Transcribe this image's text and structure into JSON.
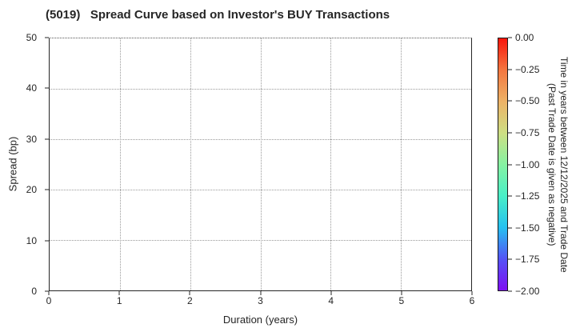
{
  "figure": {
    "background": "#ffffff",
    "text_color": "#262626",
    "grid_color": "#9a9a9a"
  },
  "chart_data": {
    "type": "scatter",
    "title": "(5019)   Spread Curve based on Investor's BUY Transactions",
    "xlabel": "Duration (years)",
    "ylabel": "Spread (bp)",
    "xlim": [
      0,
      6
    ],
    "ylim": [
      0,
      50
    ],
    "xticks": [
      "0",
      "1",
      "2",
      "3",
      "4",
      "5",
      "6"
    ],
    "yticks": [
      "0",
      "10",
      "20",
      "30",
      "40",
      "50"
    ],
    "grid": "dotted, horizontal and vertical",
    "series": [],
    "points": [],
    "colorbar": {
      "label_line1": "Time in years between 12/12/2025 and Trade Date",
      "label_line2": "(Past Trade Date is given as negative)",
      "ticks": [
        "0.00",
        "−0.25",
        "−0.50",
        "−0.75",
        "−1.00",
        "−1.25",
        "−1.50",
        "−1.75",
        "−2.00"
      ],
      "vmax": 0.0,
      "vmin": -2.0,
      "colormap": "rainbow",
      "gradient_top_to_bottom": [
        "#f8150b",
        "#f4763f",
        "#edb266",
        "#cede83",
        "#86f2a2",
        "#49efc7",
        "#25c1f0",
        "#5453f6",
        "#7e0ff2"
      ]
    }
  }
}
